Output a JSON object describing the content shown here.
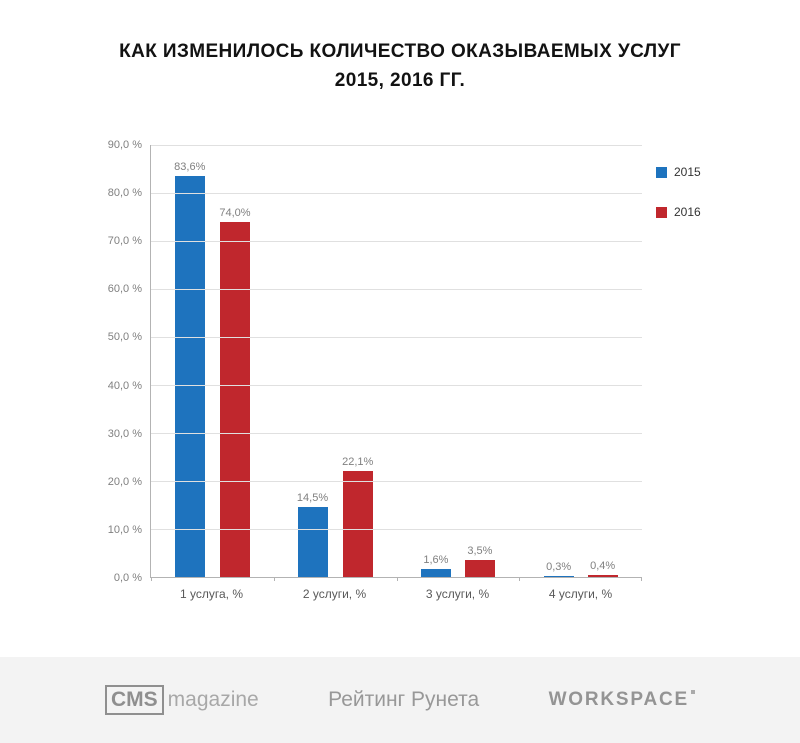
{
  "title": {
    "line1": "КАК ИЗМЕНИЛОСЬ КОЛИЧЕСТВО ОКАЗЫВАЕМЫХ УСЛУГ",
    "line2": "2015, 2016 ГГ."
  },
  "chart_data": {
    "type": "bar",
    "categories": [
      "1 услуга, %",
      "2 услуги, %",
      "3 услуги, %",
      "4 услуги, %"
    ],
    "series": [
      {
        "name": "2015",
        "color": "#1E73BE",
        "values": [
          83.6,
          14.5,
          1.6,
          0.3
        ],
        "labels": [
          "83,6%",
          "14,5%",
          "1,6%",
          "0,3%"
        ]
      },
      {
        "name": "2016",
        "color": "#C0272D",
        "values": [
          74.0,
          22.1,
          3.5,
          0.4
        ],
        "labels": [
          "74,0%",
          "22,1%",
          "3,5%",
          "0,4%"
        ]
      }
    ],
    "ylim": [
      0,
      90
    ],
    "ytick_step": 10,
    "ytick_labels": [
      "90,0 %",
      "80,0 %",
      "70,0 %",
      "60,0 %",
      "50,0 %",
      "40,0 %",
      "30,0 %",
      "20,0 %",
      "10,0 %",
      "0,0 %"
    ],
    "grid": true,
    "legend_position": "right"
  },
  "footer": {
    "cms": {
      "bold": "CMS",
      "rest": "magazine"
    },
    "rating": {
      "text": "Рейтинг Рунета"
    },
    "workspace": {
      "text": "WORKSPACE"
    }
  }
}
